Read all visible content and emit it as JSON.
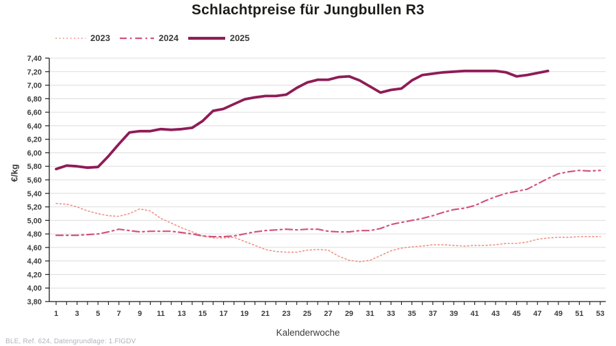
{
  "title": "Schlachtpreise für Jungbullen R3",
  "footer": "BLE, Ref. 624, Datengrundlage: 1.FlGDV",
  "chart_data": {
    "type": "line",
    "title": "Schlachtpreise für Jungbullen R3",
    "xlabel": "Kalenderwoche",
    "ylabel": "€/kg",
    "xlim": [
      1,
      53
    ],
    "ylim": [
      3.8,
      7.4
    ],
    "grid": "horizontal",
    "grid_color": "#dcdcdc",
    "axis_color": "#1a1a1a",
    "text_color": "#3c3c3b",
    "legend_position": "top-left",
    "xtick_labels": [
      1,
      3,
      5,
      7,
      9,
      11,
      13,
      15,
      17,
      19,
      21,
      23,
      25,
      27,
      29,
      31,
      33,
      35,
      37,
      39,
      41,
      43,
      45,
      47,
      49,
      51,
      53
    ],
    "ytick_values": [
      3.8,
      4.0,
      4.2,
      4.4,
      4.6,
      4.8,
      5.0,
      5.2,
      5.4,
      5.6,
      5.8,
      6.0,
      6.2,
      6.4,
      6.6,
      6.8,
      7.0,
      7.2,
      7.4
    ],
    "ytick_labels": [
      "3,80",
      "4,00",
      "4,20",
      "4,40",
      "4,60",
      "4,80",
      "5,00",
      "5,20",
      "5,40",
      "5,60",
      "5,80",
      "6,00",
      "6,20",
      "6,40",
      "6,60",
      "6,80",
      "7,00",
      "7,20",
      "7,40"
    ],
    "series": [
      {
        "name": "2023",
        "color": "#ee9285",
        "style": "dotted",
        "x_first": 1,
        "values": [
          5.25,
          5.24,
          5.2,
          5.14,
          5.1,
          5.07,
          5.06,
          5.1,
          5.17,
          5.14,
          5.03,
          4.96,
          4.89,
          4.83,
          4.77,
          4.74,
          4.74,
          4.75,
          4.69,
          4.63,
          4.57,
          4.54,
          4.53,
          4.53,
          4.56,
          4.57,
          4.56,
          4.47,
          4.41,
          4.39,
          4.41,
          4.48,
          4.55,
          4.59,
          4.61,
          4.62,
          4.64,
          4.64,
          4.63,
          4.62,
          4.63,
          4.63,
          4.64,
          4.66,
          4.66,
          4.68,
          4.72,
          4.74,
          4.75,
          4.75,
          4.76,
          4.76,
          4.76
        ]
      },
      {
        "name": "2024",
        "color": "#d2527e",
        "style": "dashdot",
        "x_first": 1,
        "values": [
          4.78,
          4.78,
          4.78,
          4.79,
          4.8,
          4.83,
          4.87,
          4.85,
          4.83,
          4.84,
          4.84,
          4.84,
          4.82,
          4.8,
          4.77,
          4.76,
          4.76,
          4.77,
          4.8,
          4.83,
          4.85,
          4.86,
          4.87,
          4.86,
          4.87,
          4.87,
          4.84,
          4.83,
          4.83,
          4.85,
          4.85,
          4.88,
          4.94,
          4.97,
          5.0,
          5.03,
          5.07,
          5.12,
          5.16,
          5.18,
          5.22,
          5.29,
          5.35,
          5.4,
          5.43,
          5.46,
          5.54,
          5.62,
          5.69,
          5.72,
          5.74,
          5.73,
          5.74
        ]
      },
      {
        "name": "2025",
        "color": "#8e1c57",
        "style": "solid",
        "x_first": 1,
        "values": [
          5.76,
          5.81,
          5.8,
          5.78,
          5.79,
          5.95,
          6.13,
          6.3,
          6.32,
          6.32,
          6.35,
          6.34,
          6.35,
          6.37,
          6.47,
          6.62,
          6.65,
          6.72,
          6.79,
          6.82,
          6.84,
          6.84,
          6.86,
          6.96,
          7.04,
          7.08,
          7.08,
          7.12,
          7.13,
          7.07,
          6.98,
          6.89,
          6.93,
          6.95,
          7.07,
          7.15,
          7.17,
          7.19,
          7.2,
          7.21,
          7.21,
          7.21,
          7.21,
          7.19,
          7.13,
          7.15,
          7.18,
          7.21
        ]
      }
    ]
  }
}
